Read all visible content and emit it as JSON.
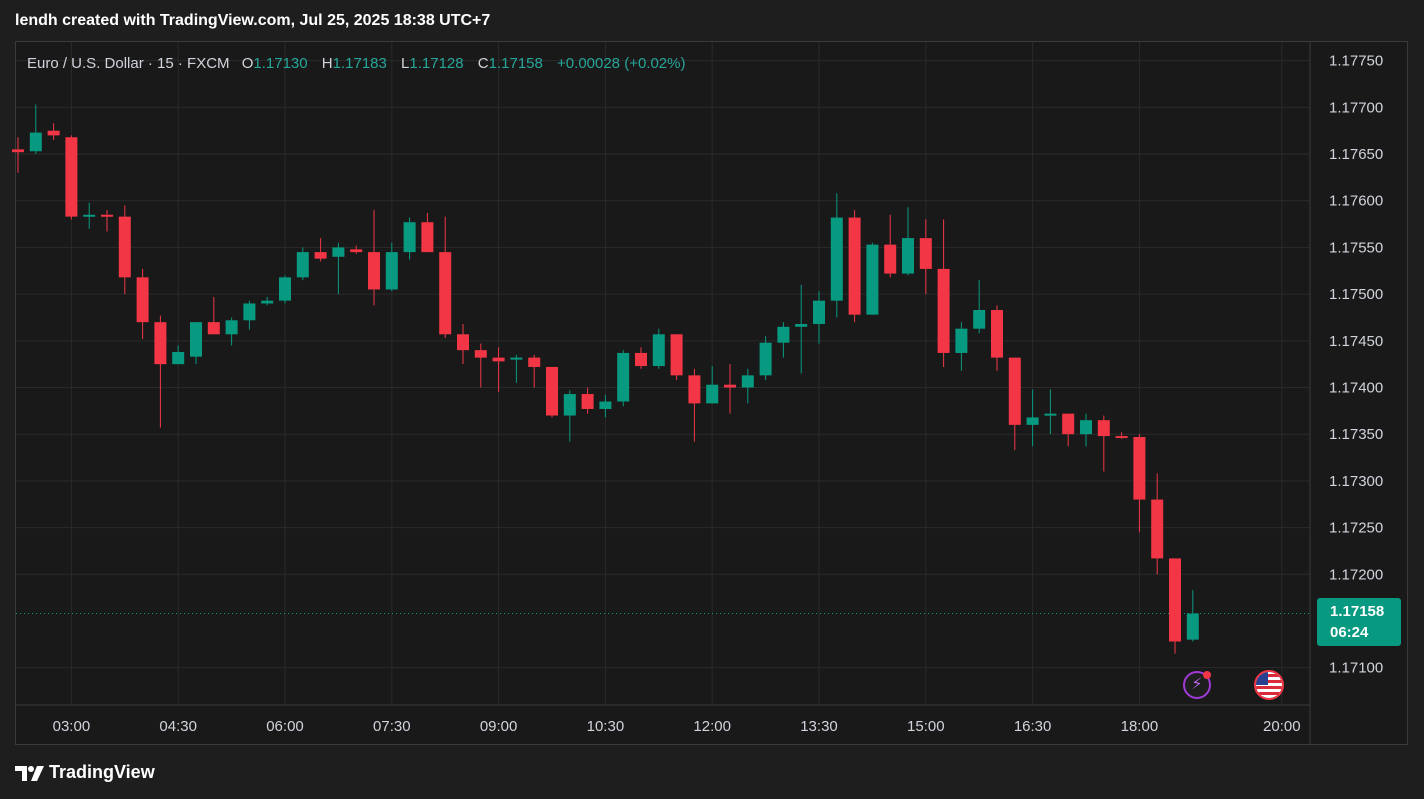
{
  "caption": "lendh created with TradingView.com, Jul 25, 2025 18:38 UTC+7",
  "legend": {
    "symbol": "Euro / U.S. Dollar · 15 · FXCM",
    "o_label": "O",
    "o_value": "1.17130",
    "h_label": "H",
    "h_value": "1.17183",
    "l_label": "L",
    "l_value": "1.17128",
    "c_label": "C",
    "c_value": "1.17158",
    "change": "+0.00028 (+0.02%)"
  },
  "last_price": {
    "price": "1.17158",
    "countdown": "06:24"
  },
  "brand": {
    "name": "TradingView"
  },
  "colors": {
    "up": "#089981",
    "down": "#f23645",
    "grid": "#2a2a2a",
    "text": "#d1d4dc"
  },
  "icons": [
    "lightning-icon",
    "us-flag-icon",
    "tradingview-logo-icon"
  ],
  "chart_data": {
    "type": "candlestick",
    "x_ticks": [
      "03:00",
      "04:30",
      "06:00",
      "07:30",
      "09:00",
      "10:30",
      "12:00",
      "13:30",
      "15:00",
      "16:30",
      "18:00",
      "20:00"
    ],
    "y_ticks": [
      "1.17750",
      "1.17700",
      "1.17650",
      "1.17600",
      "1.17550",
      "1.17500",
      "1.17450",
      "1.17400",
      "1.17350",
      "1.17300",
      "1.17250",
      "1.17200",
      "1.17100"
    ],
    "ylim": [
      1.1706,
      1.1777
    ],
    "interval_minutes": 15,
    "first_time": "02:15",
    "grid": true,
    "last_price": 1.17158,
    "candles": [
      {
        "o": 1.17655,
        "h": 1.17668,
        "l": 1.1763,
        "c": 1.17652
      },
      {
        "o": 1.17653,
        "h": 1.17703,
        "l": 1.1765,
        "c": 1.17673
      },
      {
        "o": 1.17675,
        "h": 1.17683,
        "l": 1.17665,
        "c": 1.1767
      },
      {
        "o": 1.17668,
        "h": 1.1767,
        "l": 1.1758,
        "c": 1.17583
      },
      {
        "o": 1.17583,
        "h": 1.17598,
        "l": 1.1757,
        "c": 1.17585
      },
      {
        "o": 1.17585,
        "h": 1.1759,
        "l": 1.17567,
        "c": 1.17583
      },
      {
        "o": 1.17583,
        "h": 1.17595,
        "l": 1.175,
        "c": 1.17518
      },
      {
        "o": 1.17518,
        "h": 1.17527,
        "l": 1.17452,
        "c": 1.1747
      },
      {
        "o": 1.1747,
        "h": 1.17477,
        "l": 1.17357,
        "c": 1.17425
      },
      {
        "o": 1.17425,
        "h": 1.17445,
        "l": 1.17425,
        "c": 1.17438
      },
      {
        "o": 1.17433,
        "h": 1.1747,
        "l": 1.17425,
        "c": 1.1747
      },
      {
        "o": 1.1747,
        "h": 1.17497,
        "l": 1.17458,
        "c": 1.17457
      },
      {
        "o": 1.17457,
        "h": 1.17475,
        "l": 1.17445,
        "c": 1.17472
      },
      {
        "o": 1.17472,
        "h": 1.17493,
        "l": 1.17462,
        "c": 1.1749
      },
      {
        "o": 1.1749,
        "h": 1.17497,
        "l": 1.17488,
        "c": 1.17493
      },
      {
        "o": 1.17493,
        "h": 1.1752,
        "l": 1.1749,
        "c": 1.17518
      },
      {
        "o": 1.17518,
        "h": 1.1755,
        "l": 1.17515,
        "c": 1.17545
      },
      {
        "o": 1.17545,
        "h": 1.1756,
        "l": 1.17535,
        "c": 1.17538
      },
      {
        "o": 1.1754,
        "h": 1.17555,
        "l": 1.175,
        "c": 1.1755
      },
      {
        "o": 1.17548,
        "h": 1.17552,
        "l": 1.17543,
        "c": 1.17545
      },
      {
        "o": 1.17545,
        "h": 1.1759,
        "l": 1.17488,
        "c": 1.17505
      },
      {
        "o": 1.17505,
        "h": 1.17555,
        "l": 1.17503,
        "c": 1.17545
      },
      {
        "o": 1.17545,
        "h": 1.17582,
        "l": 1.17537,
        "c": 1.17577
      },
      {
        "o": 1.17577,
        "h": 1.17587,
        "l": 1.17545,
        "c": 1.17545
      },
      {
        "o": 1.17545,
        "h": 1.17583,
        "l": 1.17453,
        "c": 1.17457
      },
      {
        "o": 1.17457,
        "h": 1.17468,
        "l": 1.17425,
        "c": 1.1744
      },
      {
        "o": 1.1744,
        "h": 1.17447,
        "l": 1.174,
        "c": 1.17432
      },
      {
        "o": 1.17432,
        "h": 1.17443,
        "l": 1.17395,
        "c": 1.17428
      },
      {
        "o": 1.1743,
        "h": 1.17435,
        "l": 1.17405,
        "c": 1.17432
      },
      {
        "o": 1.17432,
        "h": 1.17435,
        "l": 1.174,
        "c": 1.17422
      },
      {
        "o": 1.17422,
        "h": 1.1742,
        "l": 1.17368,
        "c": 1.1737
      },
      {
        "o": 1.1737,
        "h": 1.17397,
        "l": 1.17342,
        "c": 1.17393
      },
      {
        "o": 1.17393,
        "h": 1.174,
        "l": 1.17372,
        "c": 1.17377
      },
      {
        "o": 1.17377,
        "h": 1.17392,
        "l": 1.17368,
        "c": 1.17385
      },
      {
        "o": 1.17385,
        "h": 1.1744,
        "l": 1.1738,
        "c": 1.17437
      },
      {
        "o": 1.17437,
        "h": 1.17443,
        "l": 1.1742,
        "c": 1.17423
      },
      {
        "o": 1.17423,
        "h": 1.17463,
        "l": 1.1742,
        "c": 1.17457
      },
      {
        "o": 1.17457,
        "h": 1.17457,
        "l": 1.17408,
        "c": 1.17413
      },
      {
        "o": 1.17413,
        "h": 1.1742,
        "l": 1.17342,
        "c": 1.17383
      },
      {
        "o": 1.17383,
        "h": 1.17423,
        "l": 1.17383,
        "c": 1.17403
      },
      {
        "o": 1.17403,
        "h": 1.17425,
        "l": 1.17372,
        "c": 1.174
      },
      {
        "o": 1.174,
        "h": 1.1742,
        "l": 1.17383,
        "c": 1.17413
      },
      {
        "o": 1.17413,
        "h": 1.17455,
        "l": 1.17408,
        "c": 1.17448
      },
      {
        "o": 1.17448,
        "h": 1.1747,
        "l": 1.17432,
        "c": 1.17465
      },
      {
        "o": 1.17465,
        "h": 1.1751,
        "l": 1.17415,
        "c": 1.17468
      },
      {
        "o": 1.17468,
        "h": 1.17503,
        "l": 1.17447,
        "c": 1.17493
      },
      {
        "o": 1.17493,
        "h": 1.17608,
        "l": 1.17475,
        "c": 1.17582
      },
      {
        "o": 1.17582,
        "h": 1.1759,
        "l": 1.1747,
        "c": 1.17478
      },
      {
        "o": 1.17478,
        "h": 1.17555,
        "l": 1.17478,
        "c": 1.17553
      },
      {
        "o": 1.17553,
        "h": 1.17585,
        "l": 1.17518,
        "c": 1.17522
      },
      {
        "o": 1.17522,
        "h": 1.17593,
        "l": 1.1752,
        "c": 1.1756
      },
      {
        "o": 1.1756,
        "h": 1.1758,
        "l": 1.175,
        "c": 1.17527
      },
      {
        "o": 1.17527,
        "h": 1.1758,
        "l": 1.17422,
        "c": 1.17437
      },
      {
        "o": 1.17437,
        "h": 1.1747,
        "l": 1.17418,
        "c": 1.17463
      },
      {
        "o": 1.17463,
        "h": 1.17515,
        "l": 1.17458,
        "c": 1.17483
      },
      {
        "o": 1.17483,
        "h": 1.17488,
        "l": 1.17418,
        "c": 1.17432
      },
      {
        "o": 1.17432,
        "h": 1.17432,
        "l": 1.17333,
        "c": 1.1736
      },
      {
        "o": 1.1736,
        "h": 1.17398,
        "l": 1.17337,
        "c": 1.17368
      },
      {
        "o": 1.1737,
        "h": 1.17398,
        "l": 1.1735,
        "c": 1.17372
      },
      {
        "o": 1.17372,
        "h": 1.17372,
        "l": 1.17337,
        "c": 1.1735
      },
      {
        "o": 1.1735,
        "h": 1.17372,
        "l": 1.17337,
        "c": 1.17365
      },
      {
        "o": 1.17365,
        "h": 1.1737,
        "l": 1.1731,
        "c": 1.17348
      },
      {
        "o": 1.17348,
        "h": 1.17352,
        "l": 1.17345,
        "c": 1.17347
      },
      {
        "o": 1.17347,
        "h": 1.1735,
        "l": 1.17245,
        "c": 1.1728
      },
      {
        "o": 1.1728,
        "h": 1.17308,
        "l": 1.172,
        "c": 1.17217
      },
      {
        "o": 1.17217,
        "h": 1.17217,
        "l": 1.17115,
        "c": 1.17128
      },
      {
        "o": 1.1713,
        "h": 1.17183,
        "l": 1.17128,
        "c": 1.17158
      }
    ]
  }
}
